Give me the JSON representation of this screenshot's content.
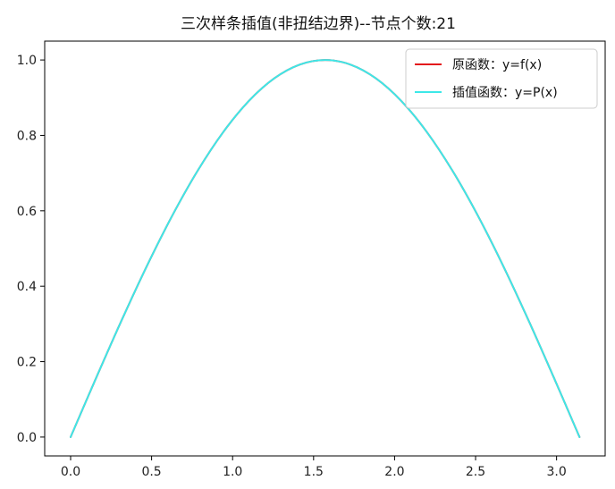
{
  "chart_data": {
    "type": "line",
    "title": "三次样条插值(非扭结边界)--节点个数:21",
    "xlabel": "",
    "ylabel": "",
    "xlim": [
      -0.16,
      3.3
    ],
    "ylim": [
      -0.05,
      1.05
    ],
    "x_ticks": [
      0.0,
      0.5,
      1.0,
      1.5,
      2.0,
      2.5,
      3.0
    ],
    "x_tick_labels": [
      "0.0",
      "0.5",
      "1.0",
      "1.5",
      "2.0",
      "2.5",
      "3.0"
    ],
    "y_ticks": [
      0.0,
      0.2,
      0.4,
      0.6,
      0.8,
      1.0
    ],
    "y_tick_labels": [
      "0.0",
      "0.2",
      "0.4",
      "0.6",
      "0.8",
      "1.0"
    ],
    "grid": false,
    "legend_position": "top-right",
    "x": [
      0.0,
      0.1571,
      0.3142,
      0.4712,
      0.6283,
      0.7854,
      0.9425,
      1.0996,
      1.2566,
      1.4137,
      1.5708,
      1.7279,
      1.885,
      2.042,
      2.1991,
      2.3562,
      2.5133,
      2.6704,
      2.8274,
      2.9845,
      3.1416
    ],
    "series": [
      {
        "name": "原函数：y=f(x)",
        "color": "#e31a1c",
        "values": [
          0.0,
          0.1564,
          0.309,
          0.454,
          0.5878,
          0.7071,
          0.809,
          0.891,
          0.9511,
          0.9877,
          1.0,
          0.9877,
          0.9511,
          0.891,
          0.809,
          0.7071,
          0.5878,
          0.454,
          0.309,
          0.1564,
          0.0
        ]
      },
      {
        "name": "插值函数：y=P(x)",
        "color": "#3de8e8",
        "values": [
          0.0,
          0.1564,
          0.309,
          0.454,
          0.5878,
          0.7071,
          0.809,
          0.891,
          0.9511,
          0.9877,
          1.0,
          0.9877,
          0.9511,
          0.891,
          0.809,
          0.7071,
          0.5878,
          0.454,
          0.309,
          0.1564,
          0.0
        ]
      }
    ]
  }
}
